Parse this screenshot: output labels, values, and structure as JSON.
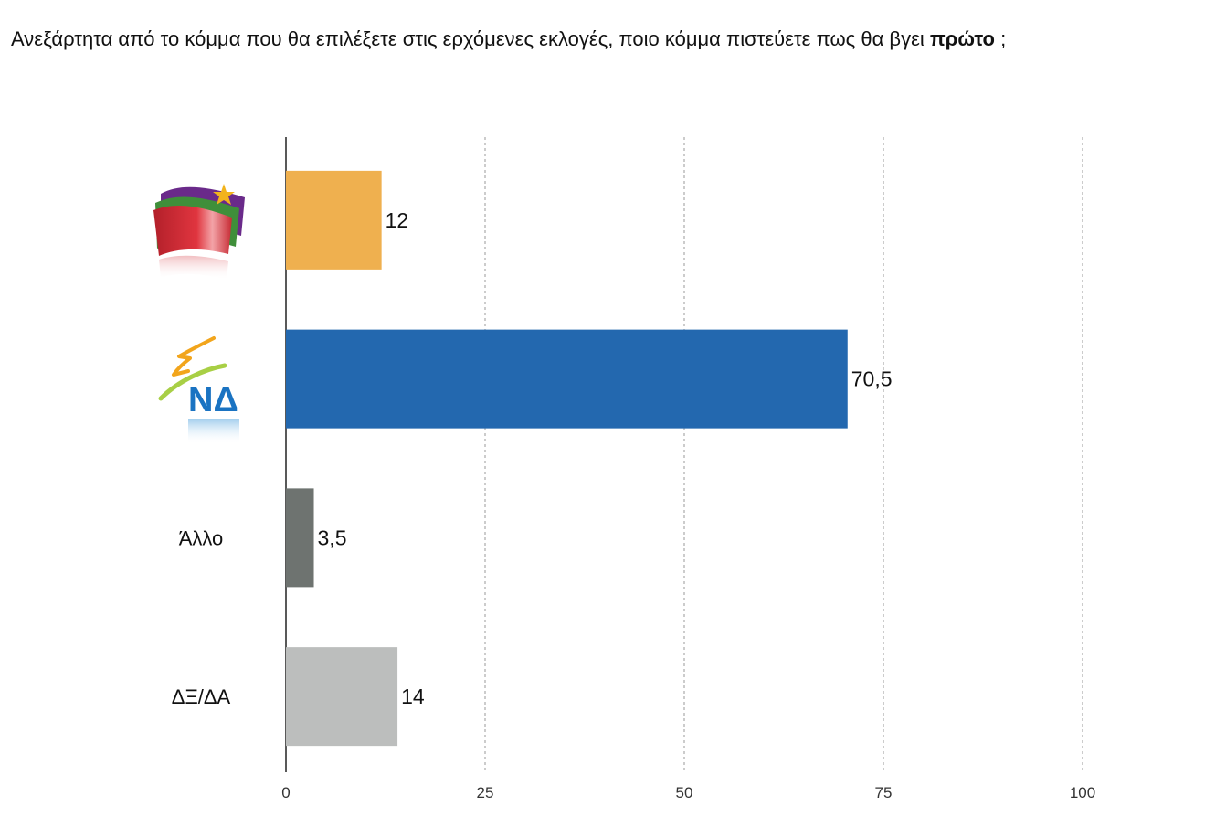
{
  "question": {
    "before": "Ανεξάρτητα από το κόμμα που θα επιλέξετε στις ερχόμενες εκλογές, ποιο κόμμα πιστεύετε πως θα βγει ",
    "bold": "πρώτο",
    "after": " ;"
  },
  "chart_data": {
    "type": "bar",
    "orientation": "horizontal",
    "title": "",
    "xlabel": "",
    "ylabel": "",
    "xlim": [
      0,
      100
    ],
    "ticks": [
      0,
      25,
      50,
      75,
      100
    ],
    "grid": "vertical-dashed",
    "categories": [
      {
        "label": "",
        "logo": "syriza-flag-logo",
        "value": 12,
        "value_label": "12",
        "color": "#EFB04F"
      },
      {
        "label": "",
        "logo": "nd-logo",
        "logo_text": "ΝΔ",
        "value": 70.5,
        "value_label": "70,5",
        "color": "#2368AF"
      },
      {
        "label": "Άλλο",
        "value": 3.5,
        "value_label": "3,5",
        "color": "#6E7370"
      },
      {
        "label": "ΔΞ/ΔΑ",
        "value": 14,
        "value_label": "14",
        "color": "#BCBEBD"
      }
    ]
  }
}
